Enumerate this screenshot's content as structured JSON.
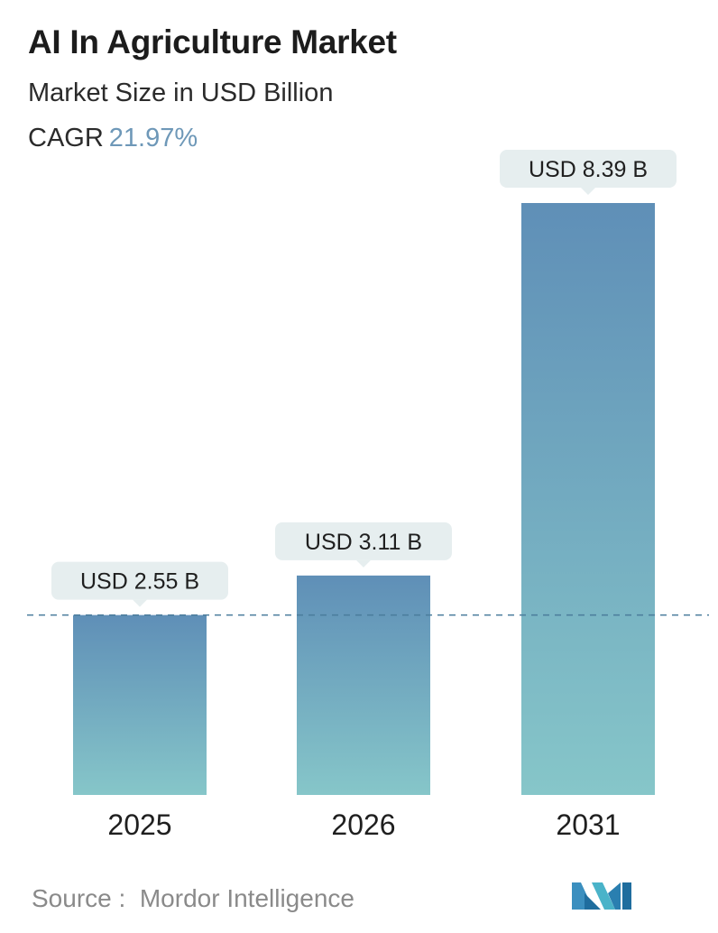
{
  "header": {
    "title": "AI In Agriculture Market",
    "subtitle": "Market Size in USD Billion",
    "cagr_label": "CAGR",
    "cagr_value": "21.97%"
  },
  "chart_data": {
    "type": "bar",
    "categories": [
      "2025",
      "2026",
      "2031"
    ],
    "values": [
      2.55,
      3.11,
      8.39
    ],
    "data_labels": [
      "USD 2.55 B",
      "USD 3.11 B",
      "USD 8.39 B"
    ],
    "title": "AI In Agriculture Market",
    "subtitle": "Market Size in USD Billion",
    "xlabel": "",
    "ylabel": "",
    "ylim": [
      0,
      8.39
    ],
    "grid": false,
    "reference_line": {
      "value": 2.55,
      "style": "dashed"
    },
    "colors": {
      "bar_top": "#5f8fb7",
      "bar_bottom": "#86c6c9",
      "label_bg": "#e6eeef",
      "reference_line": "#4a7c9c",
      "cagr_value": "#6e98b8"
    }
  },
  "footer": {
    "source_label": "Source :",
    "source_value": "Mordor Intelligence",
    "logo_icon": "mordor-intelligence-logo-icon"
  }
}
